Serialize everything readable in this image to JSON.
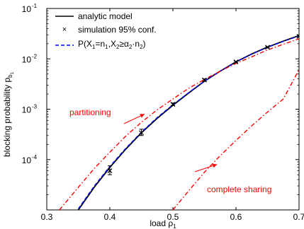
{
  "chart_data": {
    "type": "line",
    "xlabel": "load ρ",
    "xlabel_sub": "1",
    "ylabel": "blocking probability p",
    "ylabel_sub": "b",
    "ylabel_subsub": "1",
    "xlim": [
      0.3,
      0.7
    ],
    "ylim": [
      1e-05,
      0.1
    ],
    "y_scale": "log",
    "x_ticks": [
      0.3,
      0.4,
      0.5,
      0.6,
      0.7
    ],
    "x_tick_labels": [
      "0.3",
      "0.4",
      "0.5",
      "0.6",
      "0.7"
    ],
    "y_ticks": [
      0.0001,
      0.001,
      0.01,
      0.1
    ],
    "y_tick_mantissa": [
      "10",
      "10",
      "10",
      "10"
    ],
    "y_tick_exponents": [
      "-4",
      "-3",
      "-2",
      "-1"
    ],
    "grid": false,
    "legend_position": "top-left",
    "legend": [
      {
        "label": "analytic model",
        "style": "solid",
        "color": "#000000"
      },
      {
        "label": "simulation 95% conf.",
        "style": "marker-x",
        "color": "#000000"
      },
      {
        "label": "P(X",
        "label_parts": [
          "P(X",
          "1",
          "=n",
          "1",
          ",X",
          "2",
          "≥α",
          "2",
          "·n",
          "2",
          ")"
        ],
        "style": "dashed",
        "color": "#0000ff"
      }
    ],
    "annotations": [
      {
        "text": "partitioning",
        "color": "#ff0000",
        "arrow_to": [
          0.455,
          0.0008
        ]
      },
      {
        "text": "complete sharing",
        "color": "#ff0000",
        "arrow_to": [
          0.57,
          8e-05
        ]
      }
    ],
    "series": [
      {
        "name": "analytic model",
        "style": "solid",
        "color": "#000000",
        "x": [
          0.35,
          0.375,
          0.4,
          0.425,
          0.45,
          0.475,
          0.5,
          0.525,
          0.55,
          0.575,
          0.6,
          0.625,
          0.65,
          0.675,
          0.7
        ],
        "y": [
          1e-05,
          2.8e-05,
          7e-05,
          0.00016,
          0.00034,
          0.00066,
          0.0012,
          0.0021,
          0.0036,
          0.0057,
          0.0087,
          0.0125,
          0.0171,
          0.0225,
          0.029
        ]
      },
      {
        "name": "P(X1=n1,X2≥α2·n2)",
        "style": "dashed",
        "color": "#0000ff",
        "x": [
          0.35,
          0.375,
          0.4,
          0.425,
          0.45,
          0.475,
          0.5,
          0.525,
          0.55,
          0.575,
          0.6,
          0.625,
          0.65,
          0.675,
          0.7
        ],
        "y": [
          1.05e-05,
          2.95e-05,
          7.3e-05,
          0.000166,
          0.00035,
          0.00068,
          0.00123,
          0.00213,
          0.00362,
          0.0057,
          0.0087,
          0.0124,
          0.0169,
          0.0222,
          0.0285
        ]
      },
      {
        "name": "partitioning",
        "style": "dashdot",
        "color": "#ff0000",
        "x": [
          0.32,
          0.35,
          0.375,
          0.4,
          0.425,
          0.45,
          0.475,
          0.5,
          0.525,
          0.55,
          0.575,
          0.6,
          0.625,
          0.65,
          0.675,
          0.7
        ],
        "y": [
          1e-05,
          2.8e-05,
          6.6e-05,
          0.00014,
          0.00029,
          0.00055,
          0.00097,
          0.0016,
          0.0026,
          0.0039,
          0.0057,
          0.0081,
          0.011,
          0.015,
          0.0195,
          0.025
        ]
      },
      {
        "name": "complete sharing",
        "style": "dashdot",
        "color": "#ff0000",
        "x": [
          0.5,
          0.525,
          0.55,
          0.575,
          0.6,
          0.625,
          0.65,
          0.675,
          0.7
        ],
        "y": [
          1e-05,
          2.4e-05,
          5.6e-05,
          0.00012,
          0.00024,
          0.00047,
          0.00088,
          0.0016,
          0.0061
        ]
      },
      {
        "name": "simulation 95% conf.",
        "style": "marker-x",
        "color": "#000000",
        "x": [
          0.4,
          0.45,
          0.5,
          0.55,
          0.6,
          0.65,
          0.7
        ],
        "y": [
          6e-05,
          0.00034,
          0.00125,
          0.0038,
          0.0087,
          0.017,
          0.028
        ],
        "ci_low": [
          5e-05,
          0.0003,
          0.00118,
          0.0036,
          0.0084,
          0.0165,
          0.0273
        ],
        "ci_high": [
          7.5e-05,
          0.0004,
          0.00133,
          0.004,
          0.009,
          0.0175,
          0.0287
        ]
      }
    ]
  }
}
